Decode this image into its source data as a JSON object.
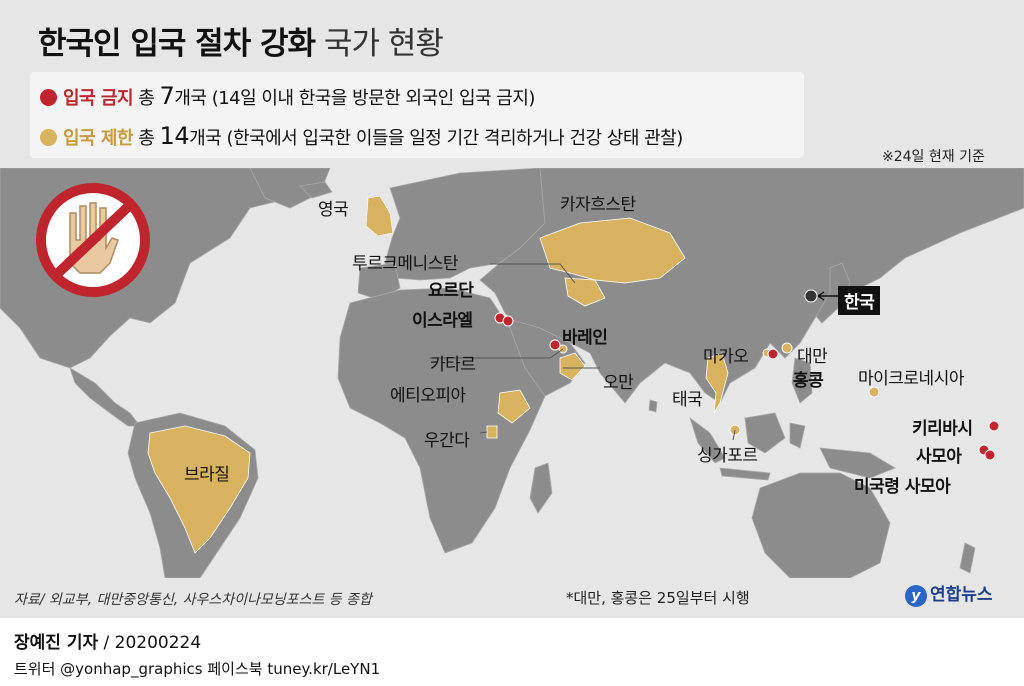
{
  "title_bold": "한국인 입국 절차 강화",
  "title_light": "국가 현황",
  "legend": {
    "ban": {
      "category": "입국 금지",
      "pre": "총",
      "count": "7",
      "unit": "개국",
      "desc": "(14일 이내 한국을 방문한 외국인 입국 금지)",
      "color": "#c0252e"
    },
    "restrict": {
      "category": "입국 제한",
      "pre": "총",
      "count": "14",
      "unit": "개국",
      "desc": "(한국에서 입국한 이들을 일정 기간 격리하거나 건강 상태 관찰)",
      "color": "#d8b25e"
    }
  },
  "date_note": "※24일 현재 기준",
  "countries": {
    "uk": "영국",
    "kazakhstan": "카자흐스탄",
    "turkmenistan": "투르크메니스탄",
    "jordan": "요르단",
    "israel": "이스라엘",
    "bahrain": "바레인",
    "qatar": "카타르",
    "oman": "오만",
    "ethiopia": "에티오피아",
    "uganda": "우간다",
    "brazil": "브라질",
    "macau": "마카오",
    "taiwan": "대만",
    "hongkong": "홍콩",
    "micronesia": "마이크로네시아",
    "thailand": "태국",
    "singapore": "싱가포르",
    "kiribati": "키리바시",
    "samoa": "사모아",
    "am_samoa": "미국령 사모아",
    "korea": "한국"
  },
  "source": "자료/ 외교부, 대만중앙통신, 사우스차이나모닝포스트 등 종합",
  "footnote": "*대만, 홍콩은 25일부터 시행",
  "logo": "연합뉴스",
  "reporter_name": "장예진 기자",
  "reporter_date": "/ 20200224",
  "social": "트위터 @yonhap_graphics  페이스북 tuney.kr/LeYN1",
  "colors": {
    "land": "#8c8c8c",
    "sea": "#e6e6e6",
    "ban": "#c0252e",
    "restrict": "#d8b25e",
    "border": "#a8a8a8"
  }
}
